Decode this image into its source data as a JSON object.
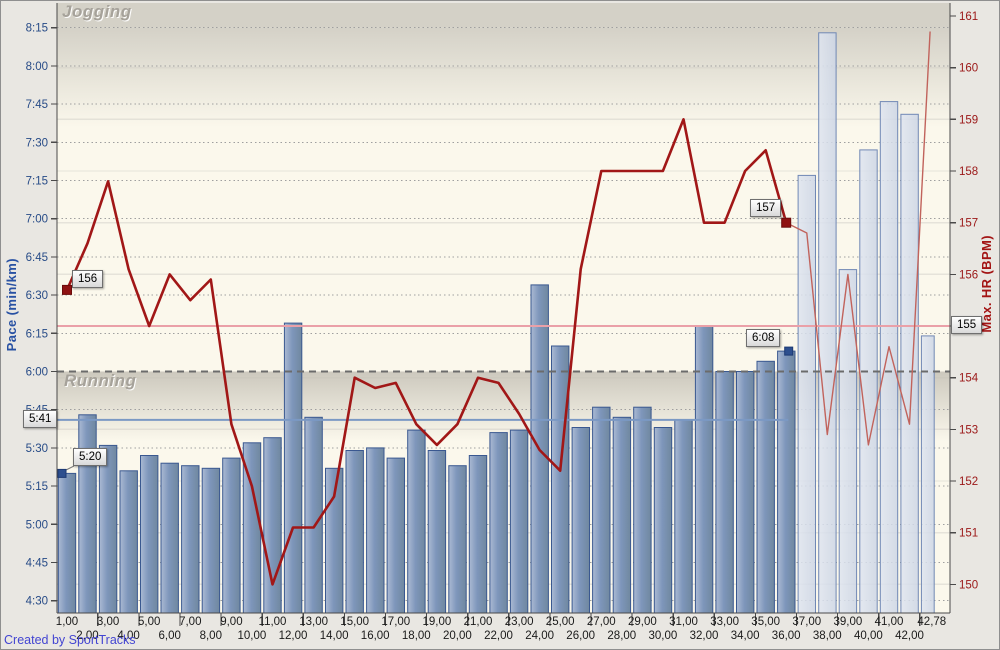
{
  "window": {
    "watermark": "Created by SportTracks"
  },
  "zones": {
    "jogging_label": "Jogging",
    "running_label": "Running"
  },
  "colors": {
    "plot_bg": "#fbf8ec",
    "margin_bg": "#e9e7e2",
    "zone_band": "#d4d1c7",
    "bar_fill": "#7e96bb",
    "bar_fill_light": "#abbad3",
    "bar_border": "#3a5890",
    "pale_fill": "#ccd5e5",
    "pale_fill_light": "#dfe5f0",
    "pale_border": "#7088b5",
    "hr_line": "#a11717",
    "hr_line_tail": "#c1635c",
    "avg_hr_line": "#eaa0a8",
    "avg_pace_line": "#7b99c4",
    "pace_text": "#274b87",
    "hr_text": "#9b1717",
    "x_text": "#1a1a1a",
    "axis_line": "#4a4a4a",
    "grid_dotted": "#9f9f9f",
    "grid_solid": "#e6e3da",
    "zone_dash_line": "#6b6b6b"
  },
  "chart_data": {
    "type": "bar+line",
    "x_axis": {
      "unit": "km",
      "row1_labels": [
        "1,00",
        "3,00",
        "5,00",
        "7,00",
        "9,00",
        "11,00",
        "13,00",
        "15,00",
        "17,00",
        "19,00",
        "21,00",
        "23,00",
        "25,00",
        "27,00",
        "29,00",
        "31,00",
        "33,00",
        "35,00",
        "37,00",
        "39,00",
        "41,00",
        "42,78"
      ],
      "row1_km": [
        1,
        3,
        5,
        7,
        9,
        11,
        13,
        15,
        17,
        19,
        21,
        23,
        25,
        27,
        29,
        31,
        33,
        35,
        37,
        39,
        41,
        42.78
      ],
      "row2_labels": [
        "2,00",
        "4,00",
        "6,00",
        "8,00",
        "10,00",
        "12,00",
        "14,00",
        "16,00",
        "18,00",
        "20,00",
        "22,00",
        "24,00",
        "26,00",
        "28,00",
        "30,00",
        "32,00",
        "34,00",
        "36,00",
        "38,00",
        "40,00",
        "42,00"
      ],
      "row2_km": [
        2,
        4,
        6,
        8,
        10,
        12,
        14,
        16,
        18,
        20,
        22,
        24,
        26,
        28,
        30,
        32,
        34,
        36,
        38,
        40,
        42
      ],
      "x_max_km": 42.78
    },
    "pace_axis": {
      "label": "Pace (min/km)",
      "ticks": [
        "8:15",
        "8:00",
        "7:45",
        "7:30",
        "7:15",
        "7:00",
        "6:45",
        "6:30",
        "6:15",
        "6:00",
        "5:45",
        "5:30",
        "5:15",
        "5:00",
        "4:45",
        "4:30"
      ],
      "top_sec": 495,
      "step_sec": 15
    },
    "hr_axis": {
      "label": "Max. HR (BPM)",
      "ticks": [
        "161",
        "160",
        "159",
        "158",
        "157",
        "156",
        "155",
        "154",
        "153",
        "152",
        "151",
        "150"
      ],
      "top": 161,
      "step": 1
    },
    "bars": {
      "series_name": "Pace (min/km)",
      "km": [
        1,
        2,
        3,
        4,
        5,
        6,
        7,
        8,
        9,
        10,
        11,
        12,
        13,
        14,
        15,
        16,
        17,
        18,
        19,
        20,
        21,
        22,
        23,
        24,
        25,
        26,
        27,
        28,
        29,
        30,
        31,
        32,
        33,
        34,
        35,
        36,
        37,
        38,
        39,
        40,
        41,
        42,
        42.78
      ],
      "pace_labels": [
        "5:20",
        "5:43",
        "5:31",
        "5:21",
        "5:27",
        "5:24",
        "5:23",
        "5:22",
        "5:26",
        "5:32",
        "5:34",
        "6:19",
        "5:42",
        "5:22",
        "5:29",
        "5:30",
        "5:26",
        "5:37",
        "5:29",
        "5:23",
        "5:27",
        "5:36",
        "5:37",
        "6:34",
        "6:10",
        "5:38",
        "5:46",
        "5:42",
        "5:46",
        "5:38",
        "5:41",
        "6:18",
        "6:00",
        "6:00",
        "6:04",
        "6:08",
        "7:17",
        "8:13",
        "6:40",
        "7:27",
        "7:46",
        "7:41",
        "6:14"
      ],
      "pace_seconds": [
        320,
        343,
        331,
        321,
        327,
        324,
        323,
        322,
        326,
        332,
        334,
        379,
        342,
        322,
        329,
        330,
        326,
        337,
        329,
        323,
        327,
        336,
        337,
        394,
        370,
        338,
        346,
        342,
        346,
        338,
        341,
        378,
        360,
        360,
        364,
        368,
        437,
        493,
        400,
        447,
        466,
        461,
        374
      ],
      "pale_from_index": 36
    },
    "hr_line": {
      "series_name": "Max. HR (BPM)",
      "km": [
        1,
        2,
        3,
        4,
        5,
        6,
        7,
        8,
        9,
        10,
        11,
        12,
        13,
        14,
        15,
        16,
        17,
        18,
        19,
        20,
        21,
        22,
        23,
        24,
        25,
        26,
        27,
        28,
        29,
        30,
        31,
        32,
        33,
        34,
        35,
        36,
        37,
        38,
        39,
        40,
        41,
        42,
        42.78
      ],
      "bpm": [
        155.7,
        156.6,
        157.8,
        156.1,
        155.0,
        156.0,
        155.5,
        155.9,
        153.1,
        151.9,
        150.0,
        151.1,
        151.1,
        151.7,
        154.0,
        153.8,
        153.9,
        153.1,
        152.7,
        153.1,
        154.0,
        153.9,
        153.3,
        152.6,
        152.2,
        156.1,
        158.0,
        158.0,
        158.0,
        158.0,
        159.0,
        157.0,
        157.0,
        158.0,
        158.4,
        157.0,
        156.8,
        152.9,
        156.0,
        152.7,
        154.6,
        153.1,
        160.7
      ],
      "selection_end_km": 36
    },
    "averages": {
      "pace_label": "5:41",
      "pace_seconds": 341,
      "hr_label": "155",
      "hr_bpm": 155
    },
    "annotations": [
      {
        "id": "hr-start",
        "text": "156",
        "series": "hr",
        "km": 1
      },
      {
        "id": "pace-start",
        "text": "5:20",
        "series": "pace",
        "km": 1
      },
      {
        "id": "hr-end",
        "text": "157",
        "series": "hr",
        "km": 36
      },
      {
        "id": "pace-end",
        "text": "6:08",
        "series": "pace",
        "km": 36
      },
      {
        "id": "avg-pace",
        "text": "5:41",
        "axis": "left"
      },
      {
        "id": "avg-hr",
        "text": "155",
        "axis": "right"
      }
    ]
  }
}
